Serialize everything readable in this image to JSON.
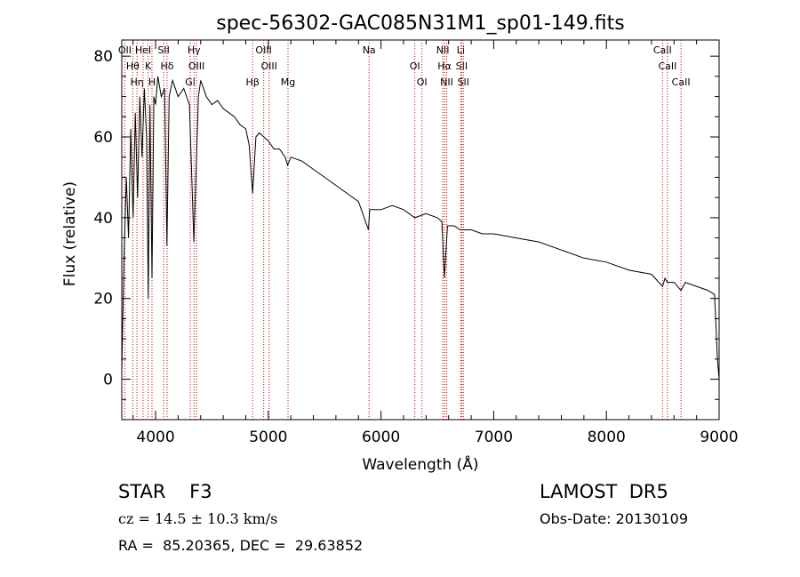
{
  "chart_data": {
    "type": "line",
    "title": "spec-56302-GAC085N31M1_sp01-149.fits",
    "xlabel": "Wavelength (Å)",
    "ylabel": "Flux (relative)",
    "xlim": [
      3700,
      9000
    ],
    "ylim": [
      -10,
      84
    ],
    "xticks": [
      4000,
      5000,
      6000,
      7000,
      8000,
      9000
    ],
    "yticks": [
      0,
      20,
      40,
      60,
      80
    ],
    "grid": false,
    "series": [
      {
        "points": [
          [
            3700,
            2
          ],
          [
            3720,
            30
          ],
          [
            3740,
            50
          ],
          [
            3760,
            35
          ],
          [
            3780,
            62
          ],
          [
            3800,
            40
          ],
          [
            3820,
            66
          ],
          [
            3840,
            45
          ],
          [
            3860,
            70
          ],
          [
            3880,
            55
          ],
          [
            3900,
            72
          ],
          [
            3920,
            60
          ],
          [
            3935,
            20
          ],
          [
            3950,
            68
          ],
          [
            3968,
            25
          ],
          [
            3985,
            70
          ],
          [
            4000,
            68
          ],
          [
            4020,
            75
          ],
          [
            4050,
            70
          ],
          [
            4080,
            72
          ],
          [
            4101,
            33
          ],
          [
            4120,
            70
          ],
          [
            4150,
            74
          ],
          [
            4200,
            70
          ],
          [
            4250,
            72
          ],
          [
            4300,
            68
          ],
          [
            4340,
            34
          ],
          [
            4380,
            70
          ],
          [
            4400,
            74
          ],
          [
            4450,
            70
          ],
          [
            4500,
            68
          ],
          [
            4550,
            69
          ],
          [
            4600,
            67
          ],
          [
            4650,
            66
          ],
          [
            4700,
            65
          ],
          [
            4750,
            63
          ],
          [
            4800,
            62
          ],
          [
            4830,
            58
          ],
          [
            4861,
            46
          ],
          [
            4890,
            60
          ],
          [
            4920,
            61
          ],
          [
            4960,
            60
          ],
          [
            5000,
            59
          ],
          [
            5050,
            57
          ],
          [
            5100,
            57
          ],
          [
            5150,
            55
          ],
          [
            5172,
            53
          ],
          [
            5200,
            55
          ],
          [
            5300,
            54
          ],
          [
            5400,
            52
          ],
          [
            5500,
            50
          ],
          [
            5600,
            48
          ],
          [
            5700,
            46
          ],
          [
            5800,
            44
          ],
          [
            5889,
            37
          ],
          [
            5900,
            42
          ],
          [
            6000,
            42
          ],
          [
            6100,
            43
          ],
          [
            6200,
            42
          ],
          [
            6300,
            40
          ],
          [
            6400,
            41
          ],
          [
            6500,
            40
          ],
          [
            6540,
            39
          ],
          [
            6563,
            25
          ],
          [
            6590,
            38
          ],
          [
            6650,
            38
          ],
          [
            6700,
            37
          ],
          [
            6800,
            37
          ],
          [
            6900,
            36
          ],
          [
            7000,
            36
          ],
          [
            7200,
            35
          ],
          [
            7400,
            34
          ],
          [
            7600,
            32
          ],
          [
            7800,
            30
          ],
          [
            8000,
            29
          ],
          [
            8200,
            27
          ],
          [
            8400,
            26
          ],
          [
            8498,
            23
          ],
          [
            8520,
            25
          ],
          [
            8542,
            24
          ],
          [
            8600,
            24
          ],
          [
            8662,
            22
          ],
          [
            8700,
            24
          ],
          [
            8800,
            23
          ],
          [
            8900,
            22
          ],
          [
            8960,
            21
          ],
          [
            8985,
            5
          ],
          [
            9000,
            0
          ]
        ]
      }
    ],
    "lines": [
      {
        "label": "OII",
        "x": 3727
      },
      {
        "label": "Hθ",
        "x": 3798
      },
      {
        "label": "Hη",
        "x": 3835
      },
      {
        "label": "HeI",
        "x": 3889
      },
      {
        "label": "K",
        "x": 3934
      },
      {
        "label": "H",
        "x": 3968
      },
      {
        "label": "SII",
        "x": 4072
      },
      {
        "label": "Hδ",
        "x": 4102
      },
      {
        "label": "Gl",
        "x": 4308
      },
      {
        "label": "Hγ",
        "x": 4341
      },
      {
        "label": "OIII",
        "x": 4363
      },
      {
        "label": "Hβ",
        "x": 4861
      },
      {
        "label": "OIII",
        "x": 4959
      },
      {
        "label": "OIII",
        "x": 5007
      },
      {
        "label": "Mg",
        "x": 5175
      },
      {
        "label": "Na",
        "x": 5894
      },
      {
        "label": "OI",
        "x": 6300
      },
      {
        "label": "OI",
        "x": 6363
      },
      {
        "label": "NII",
        "x": 6548
      },
      {
        "label": "Hα",
        "x": 6563
      },
      {
        "label": "NII",
        "x": 6583
      },
      {
        "label": "Li",
        "x": 6708
      },
      {
        "label": "SII",
        "x": 6716
      },
      {
        "label": "SII",
        "x": 6731
      },
      {
        "label": "CaII",
        "x": 8498
      },
      {
        "label": "CaII",
        "x": 8542
      },
      {
        "label": "CaII",
        "x": 8662
      }
    ]
  },
  "info": {
    "class": "STAR    F3",
    "survey": "LAMOST  DR5",
    "cz": "cz = 14.5 ± 10.3 km/s",
    "obs_date": "Obs-Date: 20130109",
    "coords": "RA =  85.20365, DEC =  29.63852"
  }
}
